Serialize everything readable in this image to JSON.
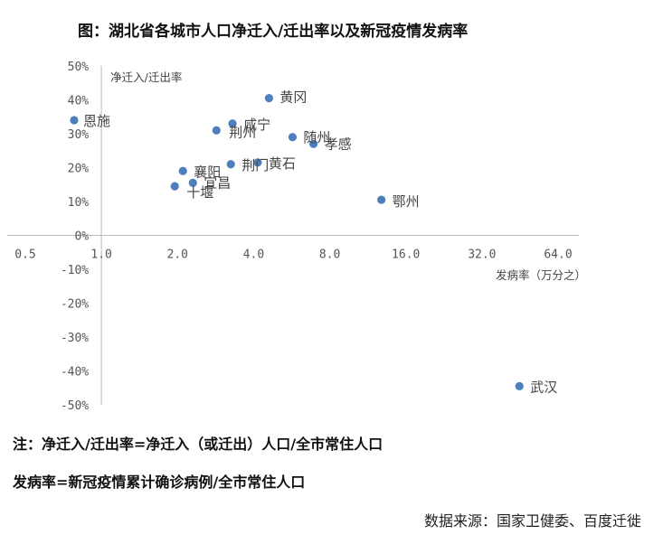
{
  "chart_data": {
    "type": "scatter",
    "title": "图：湖北省各城市人口净迁入/迁出率以及新冠疫情发病率",
    "xlabel": "发病率（万分之）",
    "ylabel": "净迁入/迁出率",
    "x_scale": "log2",
    "xlim": [
      0.5,
      64.0
    ],
    "ylim": [
      -0.5,
      0.5
    ],
    "x_ticks": [
      "0.5",
      "1.0",
      "2.0",
      "4.0",
      "8.0",
      "16.0",
      "32.0",
      "64.0"
    ],
    "y_ticks": [
      "50%",
      "40%",
      "30%",
      "20%",
      "10%",
      "0%",
      "-10%",
      "-20%",
      "-30%",
      "-40%",
      "-50%"
    ],
    "grid": false,
    "marker_color": "#4f7ebd",
    "points": [
      {
        "label": "恩施",
        "x": 0.78,
        "y": 0.34
      },
      {
        "label": "黄冈",
        "x": 4.6,
        "y": 0.405
      },
      {
        "label": "咸宁",
        "x": 3.3,
        "y": 0.33
      },
      {
        "label": "荆州",
        "x": 2.85,
        "y": 0.31
      },
      {
        "label": "随州",
        "x": 5.7,
        "y": 0.29
      },
      {
        "label": "孝感",
        "x": 6.9,
        "y": 0.27
      },
      {
        "label": "荆门",
        "x": 3.25,
        "y": 0.21
      },
      {
        "label": "黄石",
        "x": 4.15,
        "y": 0.215
      },
      {
        "label": "襄阳",
        "x": 2.1,
        "y": 0.19
      },
      {
        "label": "宜昌",
        "x": 2.3,
        "y": 0.155
      },
      {
        "label": "十堰",
        "x": 1.95,
        "y": 0.145
      },
      {
        "label": "鄂州",
        "x": 12.8,
        "y": 0.105
      },
      {
        "label": "武汉",
        "x": 45.0,
        "y": -0.445
      }
    ]
  },
  "notes": [
    "注：净迁入/迁出率=净迁入（或迁出）人口/全市常住人口",
    "发病率=新冠疫情累计确诊病例/全市常住人口"
  ],
  "source": "数据来源：国家卫健委、百度迁徙"
}
